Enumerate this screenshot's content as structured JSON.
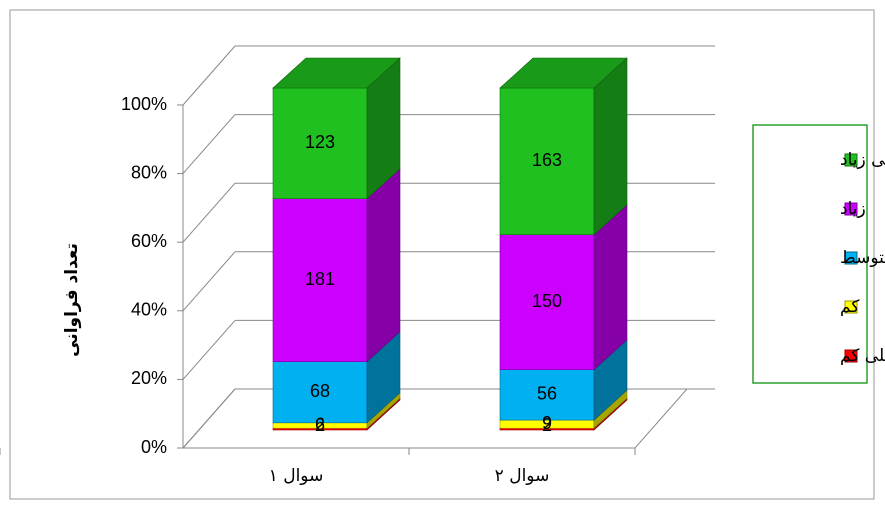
{
  "chart_data": {
    "type": "bar",
    "stacked": "percent",
    "y_label": "تعداد فراوانی",
    "categories": [
      "سوال ۱",
      "سوال ۲"
    ],
    "series": [
      {
        "name": "خیلی کم",
        "color": "#ff0000",
        "values": [
          2,
          2
        ]
      },
      {
        "name": "کم",
        "color": "#ffff00",
        "values": [
          6,
          9
        ]
      },
      {
        "name": "متوسط",
        "color": "#00b0f0",
        "values": [
          68,
          56
        ]
      },
      {
        "name": "زیاد",
        "color": "#cc00ff",
        "values": [
          181,
          150
        ]
      },
      {
        "name": "خیلی زیاد",
        "color": "#1fc01f",
        "values": [
          123,
          163
        ]
      }
    ],
    "ylim": [
      0,
      100
    ],
    "yticks": [
      {
        "value": 0,
        "label": "0%"
      },
      {
        "value": 20,
        "label": "20%"
      },
      {
        "value": 40,
        "label": "40%"
      },
      {
        "value": 60,
        "label": "60%"
      },
      {
        "value": 80,
        "label": "80%"
      },
      {
        "value": 100,
        "label": "100%"
      }
    ],
    "grid": true,
    "legend": "right"
  }
}
